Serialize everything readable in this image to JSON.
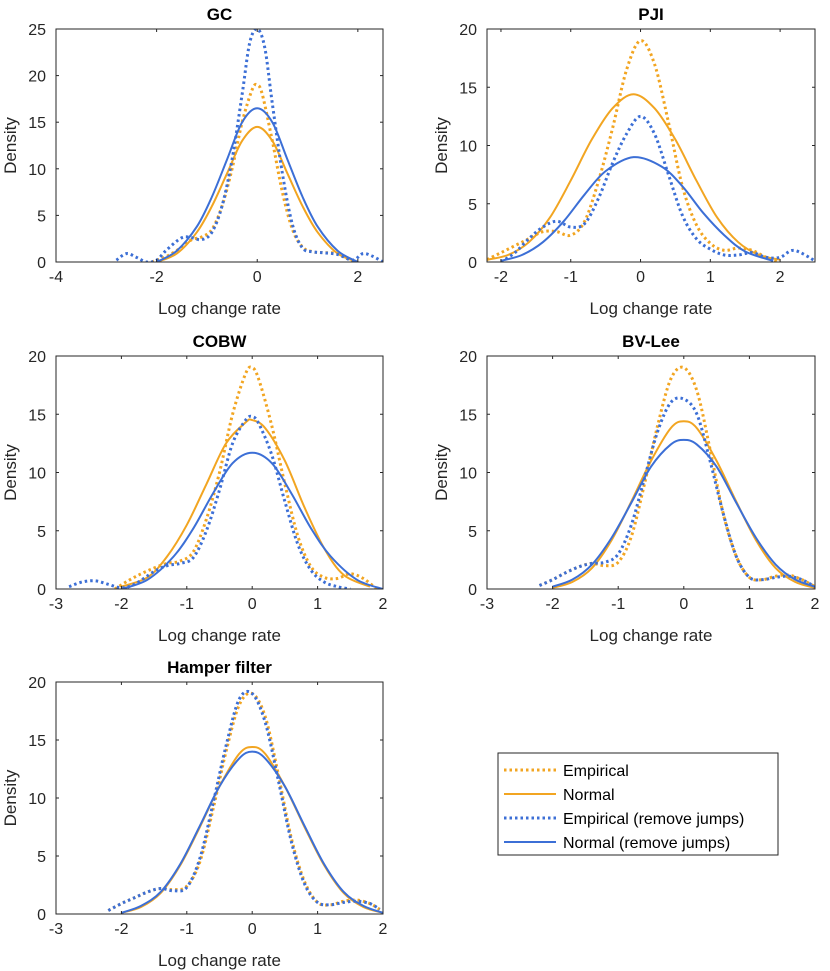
{
  "colors": {
    "empirical": "#f2a521",
    "remove_jumps": "#3c6fd6",
    "axis": "#262626"
  },
  "series_styles": [
    {
      "name": "Empirical",
      "color": "#f2a521",
      "dash": "dotted"
    },
    {
      "name": "Normal",
      "color": "#f2a521",
      "dash": "solid"
    },
    {
      "name": "Empirical (remove jumps)",
      "color": "#3c6fd6",
      "dash": "dotted"
    },
    {
      "name": "Normal (remove jumps)",
      "color": "#3c6fd6",
      "dash": "solid"
    }
  ],
  "legend": {
    "items": [
      "Empirical",
      "Normal",
      "Empirical (remove jumps)",
      "Normal (remove jumps)"
    ]
  },
  "chart_data": [
    {
      "type": "line",
      "title": "GC",
      "xlabel": "Log change rate",
      "ylabel": "Density",
      "xlim": [
        -4,
        2.5
      ],
      "ylim": [
        0,
        25
      ],
      "xticks": [
        -4,
        -2,
        0,
        2
      ],
      "yticks": [
        0,
        5,
        10,
        15,
        20,
        25
      ],
      "series": [
        {
          "name": "Empirical",
          "x": [
            -2.1,
            -1.8,
            -1.5,
            -1.3,
            -1.1,
            -0.9,
            -0.7,
            -0.5,
            -0.3,
            -0.1,
            0.0,
            0.1,
            0.3,
            0.5,
            0.7,
            0.9,
            1.1,
            1.3,
            1.6,
            1.9
          ],
          "y": [
            0,
            0.6,
            1.6,
            2.4,
            2.7,
            3.5,
            6,
            10,
            15,
            18.5,
            19,
            18,
            13,
            7.5,
            3.5,
            1.6,
            1.1,
            1.0,
            0.9,
            0
          ]
        },
        {
          "name": "Normal",
          "x": [
            -2.0,
            -1.6,
            -1.2,
            -0.9,
            -0.6,
            -0.3,
            0.0,
            0.3,
            0.6,
            0.9,
            1.2,
            1.6,
            2.0
          ],
          "y": [
            0,
            0.9,
            3.2,
            6,
            9.5,
            13,
            14.5,
            13,
            9.5,
            6,
            3.2,
            0.9,
            0
          ]
        },
        {
          "name": "Empirical (remove jumps)",
          "x": [
            -2.8,
            -2.6,
            -2.4,
            -2.2,
            -2.0,
            -1.8,
            -1.5,
            -1.3,
            -1.1,
            -0.9,
            -0.7,
            -0.5,
            -0.3,
            -0.15,
            0.0,
            0.15,
            0.3,
            0.5,
            0.7,
            0.9,
            1.1,
            1.3,
            1.6,
            1.9,
            2.1,
            2.3,
            2.5
          ],
          "y": [
            0.2,
            0.9,
            0.5,
            0,
            0.2,
            1.3,
            2.6,
            2.6,
            2.4,
            3.2,
            6,
            11,
            18,
            23.5,
            25,
            23,
            17,
            9.5,
            4,
            1.5,
            1.1,
            1.0,
            0.8,
            0.2,
            0.9,
            0.6,
            0
          ]
        },
        {
          "name": "Normal (remove jumps)",
          "x": [
            -2.0,
            -1.6,
            -1.2,
            -0.9,
            -0.6,
            -0.3,
            0.0,
            0.3,
            0.6,
            0.9,
            1.2,
            1.6,
            2.0
          ],
          "y": [
            0,
            1.2,
            3.8,
            7,
            11,
            15,
            16.5,
            15,
            11,
            7,
            3.8,
            1.2,
            0
          ]
        }
      ]
    },
    {
      "type": "line",
      "title": "PJI",
      "xlabel": "Log change rate",
      "ylabel": "Density",
      "xlim": [
        -2.2,
        2.5
      ],
      "ylim": [
        0,
        20
      ],
      "xticks": [
        -2,
        -1,
        0,
        1,
        2
      ],
      "yticks": [
        0,
        5,
        10,
        15,
        20
      ],
      "series": [
        {
          "name": "Empirical",
          "x": [
            -2.2,
            -2.0,
            -1.8,
            -1.6,
            -1.4,
            -1.2,
            -1.0,
            -0.8,
            -0.6,
            -0.4,
            -0.2,
            0.0,
            0.2,
            0.4,
            0.6,
            0.8,
            1.0,
            1.2,
            1.4,
            1.6,
            1.8,
            2.0
          ],
          "y": [
            0.2,
            0.8,
            1.4,
            2.0,
            2.6,
            2.6,
            2.3,
            3.5,
            7,
            11.5,
            16.5,
            19,
            17,
            12,
            6.5,
            3.2,
            1.6,
            1.0,
            1.2,
            1.0,
            0.4,
            0
          ]
        },
        {
          "name": "Normal",
          "x": [
            -2.2,
            -1.9,
            -1.6,
            -1.3,
            -1.0,
            -0.7,
            -0.4,
            -0.1,
            0.2,
            0.5,
            0.8,
            1.1,
            1.4,
            1.7,
            2.0
          ],
          "y": [
            0.2,
            0.6,
            1.7,
            3.8,
            7,
            10.5,
            13.2,
            14.4,
            13.2,
            10.5,
            7,
            3.8,
            1.7,
            0.6,
            0.2
          ]
        },
        {
          "name": "Empirical (remove jumps)",
          "x": [
            -2.0,
            -1.8,
            -1.6,
            -1.4,
            -1.2,
            -1.0,
            -0.8,
            -0.6,
            -0.4,
            -0.2,
            0.0,
            0.2,
            0.4,
            0.6,
            0.8,
            1.0,
            1.2,
            1.4,
            1.6,
            1.8,
            2.0,
            2.2,
            2.5
          ],
          "y": [
            0,
            0.8,
            2.0,
            3.0,
            3.5,
            3.0,
            3.3,
            5.5,
            8.5,
            11,
            12.5,
            11,
            7.5,
            4,
            2.0,
            1.1,
            0.6,
            0.6,
            0.8,
            0.4,
            0.4,
            1.0,
            0.1
          ]
        },
        {
          "name": "Normal (remove jumps)",
          "x": [
            -2.0,
            -1.7,
            -1.4,
            -1.1,
            -0.8,
            -0.5,
            -0.1,
            0.3,
            0.6,
            0.9,
            1.2,
            1.5,
            1.9
          ],
          "y": [
            0.1,
            0.6,
            1.7,
            3.5,
            5.8,
            7.8,
            9.0,
            8.2,
            6.5,
            4.2,
            2.3,
            0.9,
            0.1
          ]
        }
      ]
    },
    {
      "type": "line",
      "title": "COBW",
      "xlabel": "Log change rate",
      "ylabel": "Density",
      "xlim": [
        -3,
        2
      ],
      "ylim": [
        0,
        20
      ],
      "xticks": [
        -3,
        -2,
        -1,
        0,
        1,
        2
      ],
      "yticks": [
        0,
        5,
        10,
        15,
        20
      ],
      "series": [
        {
          "name": "Empirical",
          "x": [
            -2.1,
            -1.9,
            -1.7,
            -1.5,
            -1.3,
            -1.1,
            -0.9,
            -0.7,
            -0.5,
            -0.3,
            -0.1,
            0.0,
            0.1,
            0.3,
            0.5,
            0.7,
            0.9,
            1.1,
            1.3,
            1.5,
            1.7,
            1.9
          ],
          "y": [
            0,
            0.7,
            1.3,
            1.8,
            2.2,
            2.4,
            3.2,
            6,
            10,
            15,
            18.5,
            19,
            18,
            14,
            9,
            4.5,
            1.9,
            1.0,
            0.9,
            1.3,
            0.9,
            0
          ]
        },
        {
          "name": "Normal",
          "x": [
            -2.0,
            -1.6,
            -1.3,
            -1.0,
            -0.7,
            -0.4,
            -0.1,
            0.0,
            0.2,
            0.5,
            0.8,
            1.1,
            1.4,
            1.8
          ],
          "y": [
            0.2,
            1.0,
            2.8,
            5.5,
            9,
            12.5,
            14.3,
            14.5,
            13.8,
            11,
            7,
            3.5,
            1.2,
            0.2
          ]
        },
        {
          "name": "Empirical (remove jumps)",
          "x": [
            -2.8,
            -2.6,
            -2.4,
            -2.2,
            -2.0,
            -1.8,
            -1.5,
            -1.3,
            -1.1,
            -0.9,
            -0.7,
            -0.5,
            -0.3,
            -0.1,
            0.0,
            0.1,
            0.3,
            0.5,
            0.7,
            0.9,
            1.1,
            1.3,
            1.5
          ],
          "y": [
            0.2,
            0.6,
            0.7,
            0.4,
            0.1,
            0.4,
            1.5,
            2.0,
            2.2,
            2.7,
            5,
            8.5,
            12.5,
            14.5,
            14.8,
            14.2,
            11.5,
            7.5,
            3.8,
            1.6,
            0.6,
            0.2,
            0
          ]
        },
        {
          "name": "Normal (remove jumps)",
          "x": [
            -2.0,
            -1.6,
            -1.2,
            -0.9,
            -0.6,
            -0.3,
            0.0,
            0.3,
            0.6,
            0.9,
            1.2,
            1.6,
            2.0
          ],
          "y": [
            0,
            0.8,
            2.8,
            5.2,
            8.2,
            10.8,
            11.7,
            10.8,
            8.2,
            5.2,
            2.8,
            0.8,
            0
          ]
        }
      ]
    },
    {
      "type": "line",
      "title": "BV-Lee",
      "xlabel": "Log change rate",
      "ylabel": "Density",
      "xlim": [
        -3,
        2
      ],
      "ylim": [
        0,
        20
      ],
      "xticks": [
        -3,
        -2,
        -1,
        0,
        1,
        2
      ],
      "yticks": [
        0,
        5,
        10,
        15,
        20
      ],
      "series": [
        {
          "name": "Empirical",
          "x": [
            -2.2,
            -2.0,
            -1.8,
            -1.6,
            -1.4,
            -1.2,
            -1.0,
            -0.8,
            -0.6,
            -0.4,
            -0.2,
            0.0,
            0.2,
            0.4,
            0.6,
            0.8,
            1.0,
            1.2,
            1.4,
            1.6,
            1.8,
            2.0
          ],
          "y": [
            0.3,
            0.8,
            1.4,
            1.9,
            2.2,
            2.0,
            2.3,
            4.5,
            9,
            14,
            18,
            19,
            17,
            12,
            6.5,
            2.8,
            1.0,
            0.8,
            1.1,
            1.2,
            0.8,
            0.2
          ]
        },
        {
          "name": "Normal",
          "x": [
            -2.0,
            -1.7,
            -1.4,
            -1.1,
            -0.8,
            -0.5,
            -0.2,
            0.0,
            0.2,
            0.5,
            0.8,
            1.1,
            1.4,
            1.7,
            2.0
          ],
          "y": [
            0.1,
            0.6,
            1.8,
            4.2,
            7.5,
            11,
            13.8,
            14.4,
            13.8,
            11,
            7.5,
            4.2,
            1.8,
            0.6,
            0.1
          ]
        },
        {
          "name": "Empirical (remove jumps)",
          "x": [
            -2.2,
            -2.0,
            -1.8,
            -1.6,
            -1.4,
            -1.2,
            -1.0,
            -0.8,
            -0.6,
            -0.4,
            -0.2,
            0.0,
            0.2,
            0.4,
            0.6,
            0.8,
            1.0,
            1.2,
            1.4,
            1.6,
            1.8,
            2.0
          ],
          "y": [
            0.3,
            0.8,
            1.4,
            1.9,
            2.2,
            2.3,
            3.0,
            5.5,
            9.5,
            13.5,
            16,
            16.3,
            15,
            11,
            6.5,
            2.8,
            1.0,
            0.8,
            1.0,
            1.1,
            0.8,
            0.2
          ]
        },
        {
          "name": "Normal (remove jumps)",
          "x": [
            -2.0,
            -1.7,
            -1.4,
            -1.1,
            -0.8,
            -0.5,
            -0.2,
            0.0,
            0.2,
            0.5,
            0.8,
            1.1,
            1.4,
            1.7,
            2.0
          ],
          "y": [
            0.2,
            0.8,
            2.1,
            4.4,
            7.4,
            10.5,
            12.4,
            12.8,
            12.4,
            10.5,
            7.4,
            4.4,
            2.1,
            0.8,
            0.2
          ]
        }
      ]
    },
    {
      "type": "line",
      "title": "Hamper filter",
      "xlabel": "Log change rate",
      "ylabel": "Density",
      "xlim": [
        -3,
        2
      ],
      "ylim": [
        0,
        20
      ],
      "xticks": [
        -3,
        -2,
        -1,
        0,
        1,
        2
      ],
      "yticks": [
        0,
        5,
        10,
        15,
        20
      ],
      "series": [
        {
          "name": "Empirical",
          "x": [
            -2.2,
            -2.0,
            -1.8,
            -1.6,
            -1.4,
            -1.2,
            -1.0,
            -0.8,
            -0.6,
            -0.4,
            -0.2,
            0.0,
            0.2,
            0.4,
            0.6,
            0.8,
            1.0,
            1.2,
            1.4,
            1.6,
            1.8,
            1.95
          ],
          "y": [
            0.3,
            0.9,
            1.4,
            1.9,
            2.2,
            2.1,
            2.4,
            4.5,
            9,
            14,
            18,
            19,
            17,
            12,
            6.5,
            2.8,
            1.0,
            0.8,
            1.1,
            1.2,
            0.9,
            0.4
          ]
        },
        {
          "name": "Normal",
          "x": [
            -2.0,
            -1.7,
            -1.4,
            -1.1,
            -0.8,
            -0.5,
            -0.2,
            0.0,
            0.2,
            0.5,
            0.8,
            1.1,
            1.4,
            1.7,
            2.0
          ],
          "y": [
            0.1,
            0.6,
            1.8,
            4.2,
            7.5,
            11,
            13.8,
            14.4,
            13.8,
            11,
            7.5,
            4.2,
            1.8,
            0.6,
            0.1
          ]
        },
        {
          "name": "Empirical (remove jumps)",
          "x": [
            -2.2,
            -2.0,
            -1.8,
            -1.6,
            -1.4,
            -1.2,
            -1.0,
            -0.8,
            -0.6,
            -0.4,
            -0.2,
            0.0,
            0.2,
            0.4,
            0.6,
            0.8,
            1.0,
            1.2,
            1.4,
            1.6,
            1.8,
            1.95
          ],
          "y": [
            0.3,
            0.9,
            1.4,
            1.9,
            2.2,
            2.0,
            2.3,
            4.8,
            9.5,
            14.5,
            18.5,
            19,
            16.5,
            11.5,
            6.2,
            2.6,
            1.0,
            0.8,
            1.0,
            1.1,
            0.9,
            0.4
          ]
        },
        {
          "name": "Normal (remove jumps)",
          "x": [
            -2.0,
            -1.7,
            -1.4,
            -1.1,
            -0.8,
            -0.5,
            -0.2,
            0.0,
            0.2,
            0.5,
            0.8,
            1.1,
            1.4,
            1.7,
            2.0
          ],
          "y": [
            0.1,
            0.7,
            1.9,
            4.3,
            7.6,
            11,
            13.4,
            14.0,
            13.4,
            11,
            7.6,
            4.3,
            1.9,
            0.7,
            0.1
          ]
        }
      ]
    }
  ]
}
